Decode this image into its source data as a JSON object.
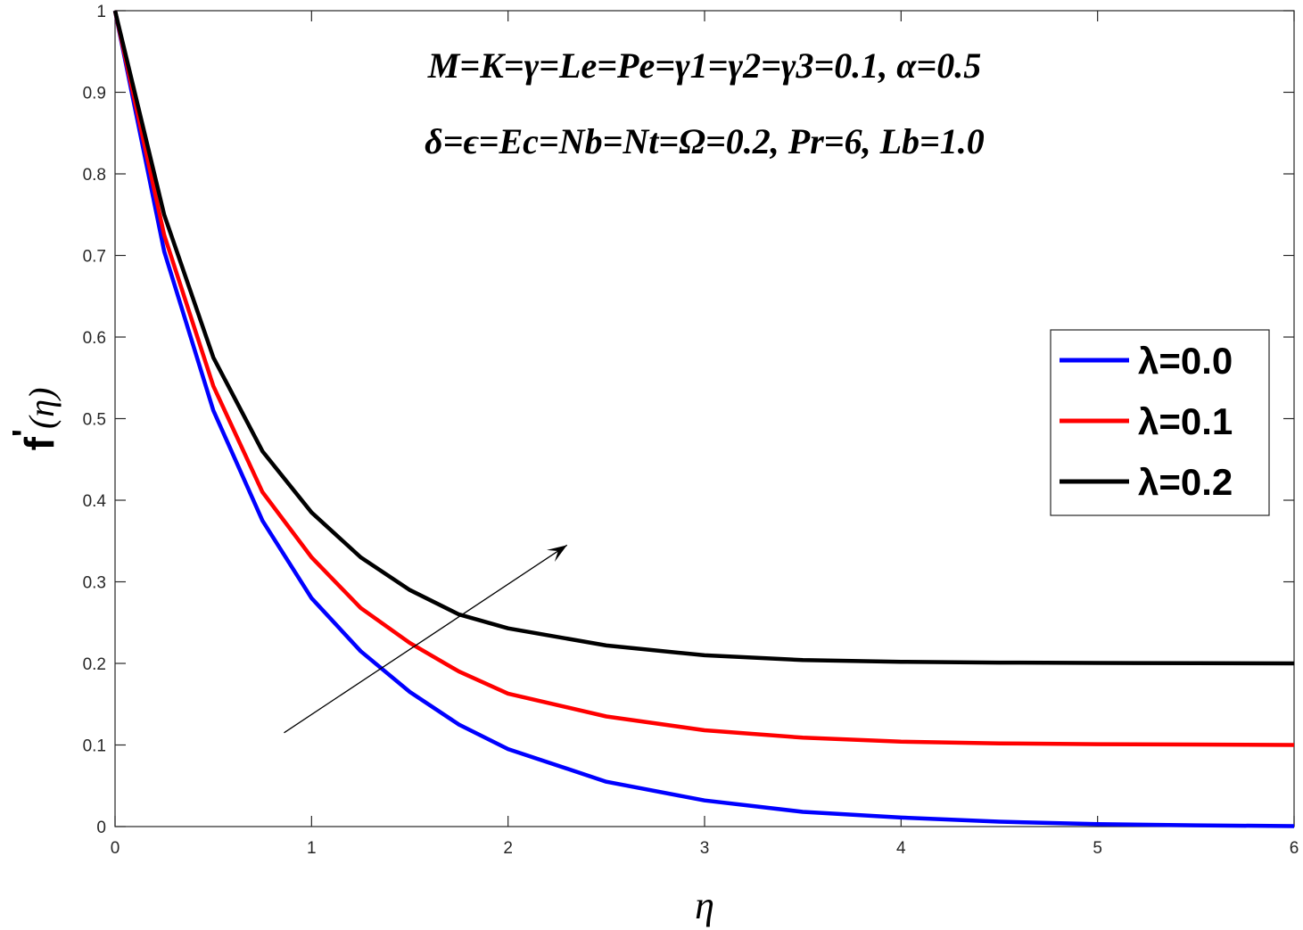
{
  "chart_data": {
    "type": "line",
    "xlabel": "η",
    "ylabel": "f'(η)",
    "ylabel_parts": {
      "main": "f",
      "prime": "'",
      "arg": "(η)"
    },
    "xlim": [
      0,
      6
    ],
    "ylim": [
      0,
      1
    ],
    "xticks": [
      0,
      1,
      2,
      3,
      4,
      5,
      6
    ],
    "xtick_labels": [
      "0",
      "1",
      "2",
      "3",
      "4",
      "5",
      "6"
    ],
    "yticks": [
      0,
      0.1,
      0.2,
      0.3,
      0.4,
      0.5,
      0.6,
      0.7,
      0.8,
      0.9,
      1
    ],
    "ytick_labels": [
      "0",
      "0.1",
      "0.2",
      "0.3",
      "0.4",
      "0.5",
      "0.6",
      "0.7",
      "0.8",
      "0.9",
      "1"
    ],
    "grid": false,
    "legend_position": "right",
    "annotations": [
      "M=K=γ=Le=Pe=γ1=γ2=γ3=0.1, α=0.5",
      "δ=ϵ=Ec=Nb=Nt=Ω=0.2, Pr=6, Lb=1.0"
    ],
    "arrow": {
      "from": [
        0.86,
        0.115
      ],
      "to": [
        2.3,
        0.345
      ],
      "meaning": "increasing λ"
    },
    "x": [
      0,
      0.25,
      0.5,
      0.75,
      1.0,
      1.25,
      1.5,
      1.75,
      2.0,
      2.5,
      3.0,
      3.5,
      4.0,
      4.5,
      5.0,
      5.5,
      6.0
    ],
    "series": [
      {
        "name": "λ=0.0",
        "color": "#0000ff",
        "values": [
          1.0,
          0.705,
          0.51,
          0.375,
          0.28,
          0.215,
          0.165,
          0.125,
          0.095,
          0.055,
          0.032,
          0.018,
          0.011,
          0.006,
          0.003,
          0.0015,
          0.0005
        ]
      },
      {
        "name": "λ=0.1",
        "color": "#ff0000",
        "values": [
          1.0,
          0.725,
          0.54,
          0.41,
          0.33,
          0.268,
          0.225,
          0.19,
          0.163,
          0.135,
          0.118,
          0.109,
          0.104,
          0.102,
          0.101,
          0.1005,
          0.1
        ]
      },
      {
        "name": "λ=0.2",
        "color": "#000000",
        "values": [
          1.0,
          0.75,
          0.575,
          0.46,
          0.385,
          0.33,
          0.29,
          0.26,
          0.243,
          0.222,
          0.21,
          0.204,
          0.202,
          0.201,
          0.2005,
          0.2002,
          0.2
        ]
      }
    ]
  }
}
